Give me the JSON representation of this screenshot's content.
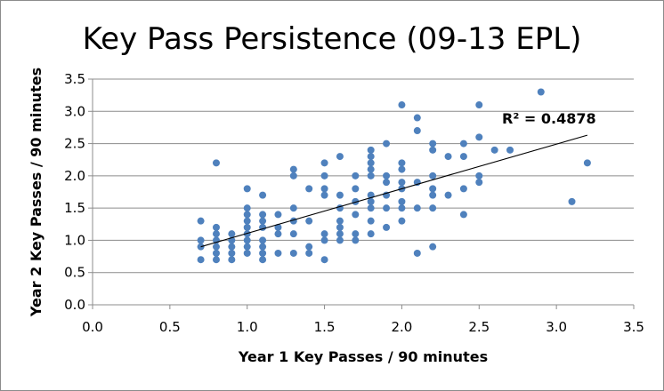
{
  "chart_data": {
    "type": "scatter",
    "title": "Key Pass Persistence (09-13 EPL)",
    "xlabel": "Year 1 Key Passes  / 90 minutes",
    "ylabel": "Year 2 Key Passes  / 90 minutes",
    "xlim": [
      0,
      3.5
    ],
    "ylim": [
      0,
      3.5
    ],
    "xticks": [
      "0.0",
      "0.5",
      "1.0",
      "1.5",
      "2.0",
      "2.5",
      "3.0",
      "3.5"
    ],
    "yticks": [
      "0.0",
      "0.5",
      "1.0",
      "1.5",
      "2.0",
      "2.5",
      "3.0",
      "3.5"
    ],
    "grid": "horizontal",
    "legend": "none",
    "marker_color": "#4f81bd",
    "trendline": {
      "type": "linear",
      "from": [
        0.7,
        0.9
      ],
      "to": [
        3.2,
        2.63
      ],
      "annotation": "R² = 0.4878"
    },
    "points": [
      [
        0.7,
        1.3
      ],
      [
        0.7,
        1.0
      ],
      [
        0.7,
        0.9
      ],
      [
        0.7,
        0.7
      ],
      [
        0.8,
        2.2
      ],
      [
        0.8,
        1.2
      ],
      [
        0.8,
        1.1
      ],
      [
        0.8,
        1.0
      ],
      [
        0.8,
        0.9
      ],
      [
        0.8,
        0.8
      ],
      [
        0.8,
        0.7
      ],
      [
        0.9,
        1.1
      ],
      [
        0.9,
        1.0
      ],
      [
        0.9,
        0.9
      ],
      [
        0.9,
        0.8
      ],
      [
        0.9,
        0.7
      ],
      [
        1.0,
        1.8
      ],
      [
        1.0,
        1.5
      ],
      [
        1.0,
        1.4
      ],
      [
        1.0,
        1.3
      ],
      [
        1.0,
        1.2
      ],
      [
        1.0,
        1.1
      ],
      [
        1.0,
        1.0
      ],
      [
        1.0,
        0.9
      ],
      [
        1.0,
        0.8
      ],
      [
        1.1,
        1.7
      ],
      [
        1.1,
        1.4
      ],
      [
        1.1,
        1.3
      ],
      [
        1.1,
        1.2
      ],
      [
        1.1,
        1.0
      ],
      [
        1.1,
        0.9
      ],
      [
        1.1,
        0.8
      ],
      [
        1.1,
        0.7
      ],
      [
        1.2,
        1.4
      ],
      [
        1.2,
        1.2
      ],
      [
        1.2,
        1.1
      ],
      [
        1.2,
        0.8
      ],
      [
        1.3,
        2.1
      ],
      [
        1.3,
        2.0
      ],
      [
        1.3,
        1.5
      ],
      [
        1.3,
        1.3
      ],
      [
        1.3,
        1.1
      ],
      [
        1.3,
        0.8
      ],
      [
        1.4,
        1.8
      ],
      [
        1.4,
        1.3
      ],
      [
        1.4,
        0.9
      ],
      [
        1.4,
        0.8
      ],
      [
        1.5,
        2.2
      ],
      [
        1.5,
        2.0
      ],
      [
        1.5,
        1.8
      ],
      [
        1.5,
        1.7
      ],
      [
        1.5,
        1.1
      ],
      [
        1.5,
        1.0
      ],
      [
        1.5,
        0.7
      ],
      [
        1.6,
        2.3
      ],
      [
        1.6,
        1.7
      ],
      [
        1.6,
        1.5
      ],
      [
        1.6,
        1.3
      ],
      [
        1.6,
        1.2
      ],
      [
        1.6,
        1.1
      ],
      [
        1.6,
        1.0
      ],
      [
        1.7,
        2.0
      ],
      [
        1.7,
        1.8
      ],
      [
        1.7,
        1.6
      ],
      [
        1.7,
        1.4
      ],
      [
        1.7,
        1.1
      ],
      [
        1.7,
        1.0
      ],
      [
        1.8,
        2.4
      ],
      [
        1.8,
        2.3
      ],
      [
        1.8,
        2.2
      ],
      [
        1.8,
        2.1
      ],
      [
        1.8,
        2.0
      ],
      [
        1.8,
        1.7
      ],
      [
        1.8,
        1.6
      ],
      [
        1.8,
        1.5
      ],
      [
        1.8,
        1.3
      ],
      [
        1.8,
        1.1
      ],
      [
        1.9,
        2.5
      ],
      [
        1.9,
        2.0
      ],
      [
        1.9,
        1.9
      ],
      [
        1.9,
        1.7
      ],
      [
        1.9,
        1.5
      ],
      [
        1.9,
        1.2
      ],
      [
        2.0,
        3.1
      ],
      [
        2.0,
        2.2
      ],
      [
        2.0,
        2.1
      ],
      [
        2.0,
        1.9
      ],
      [
        2.0,
        1.8
      ],
      [
        2.0,
        1.6
      ],
      [
        2.0,
        1.5
      ],
      [
        2.0,
        1.3
      ],
      [
        2.1,
        2.9
      ],
      [
        2.1,
        2.7
      ],
      [
        2.1,
        1.9
      ],
      [
        2.1,
        1.5
      ],
      [
        2.1,
        0.8
      ],
      [
        2.2,
        2.5
      ],
      [
        2.2,
        2.4
      ],
      [
        2.2,
        2.0
      ],
      [
        2.2,
        1.8
      ],
      [
        2.2,
        1.7
      ],
      [
        2.2,
        1.5
      ],
      [
        2.2,
        0.9
      ],
      [
        2.3,
        2.3
      ],
      [
        2.3,
        1.7
      ],
      [
        2.4,
        2.5
      ],
      [
        2.4,
        2.3
      ],
      [
        2.4,
        1.8
      ],
      [
        2.4,
        1.4
      ],
      [
        2.5,
        3.1
      ],
      [
        2.5,
        2.6
      ],
      [
        2.5,
        2.0
      ],
      [
        2.5,
        1.9
      ],
      [
        2.6,
        2.4
      ],
      [
        2.7,
        2.4
      ],
      [
        2.9,
        3.3
      ],
      [
        3.1,
        1.6
      ],
      [
        3.2,
        2.2
      ]
    ]
  }
}
